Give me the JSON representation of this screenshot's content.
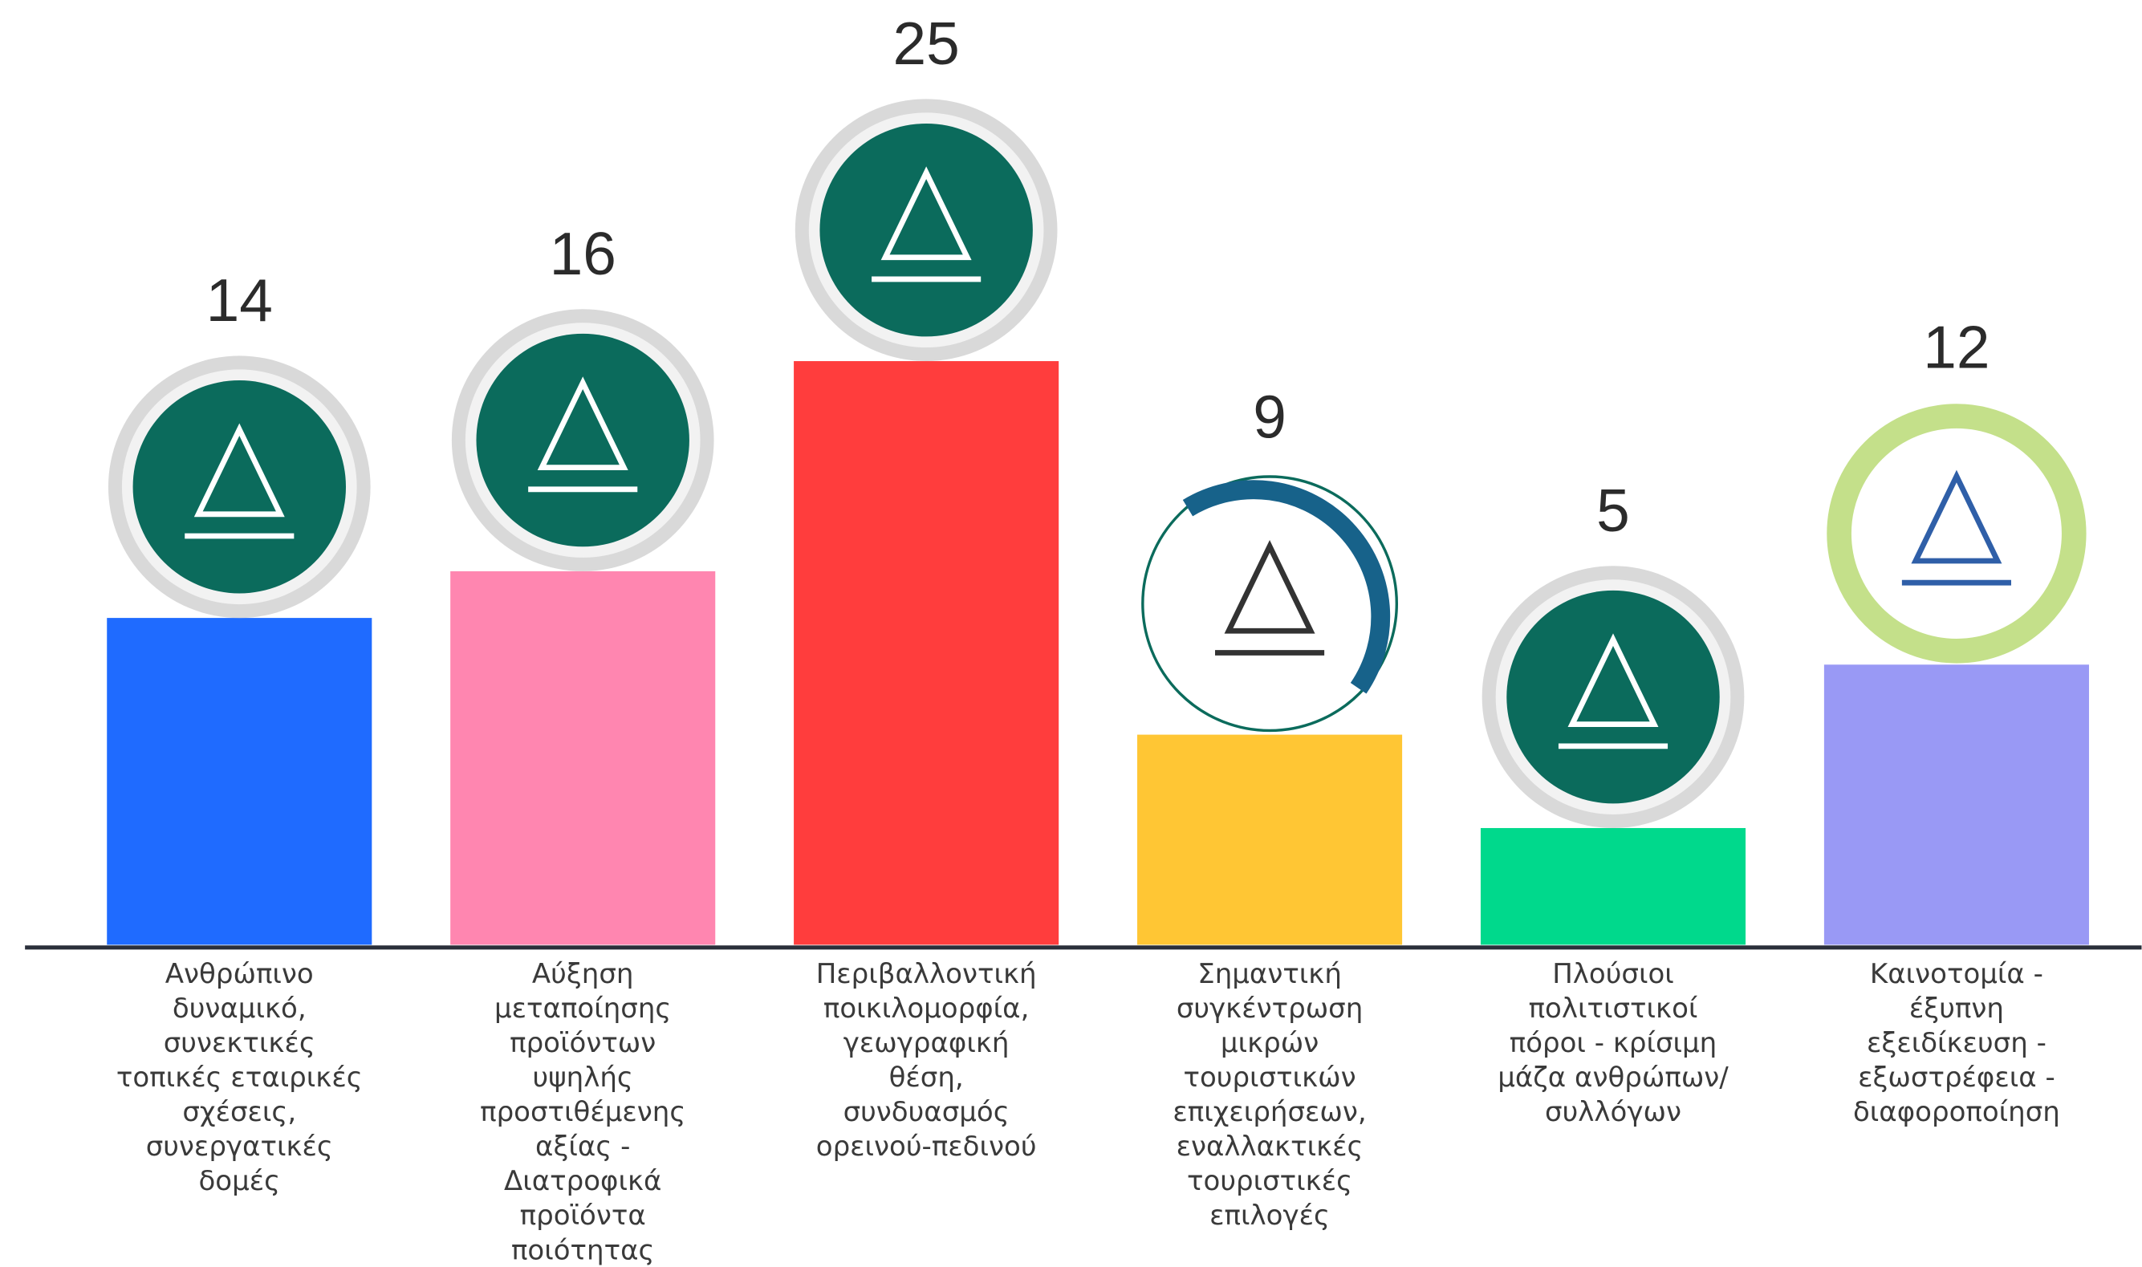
{
  "chart_data": {
    "type": "bar",
    "categories": [
      "Ανθρώπινο\nδυναμικό,\nσυνεκτικές\nτοπικές εταιρικές\nσχέσεις,\nσυνεργατικές\nδομές",
      "Αύξηση\nμεταποίησης\nπροϊόντων\nυψηλής\nπροστιθέμενης\nαξίας -\nΔιατροφικά\nπροϊόντα\nποιότητας",
      "Περιβαλλοντική\nποικιλομορφία,\nγεωγραφική\nθέση,\nσυνδυασμός\nορεινού-πεδινού",
      "Σημαντική\nσυγκέντρωση\nμικρών\nτουριστικών\nεπιχειρήσεων,\nεναλλακτικές\nτουριστικές\nεπιλογές",
      "Πλούσιοι\nπολιτιστικοί\nπόροι - κρίσιμη\nμάζα ανθρώπων/\nσυλλόγων",
      "Καινοτομία -\nέξυπνη\nεξειδίκευση -\nεξωστρέφεια -\nδιαφοροποίηση"
    ],
    "values": [
      14,
      16,
      25,
      9,
      5,
      12
    ],
    "colors": [
      "#1f6bff",
      "#ff86b0",
      "#ff3d3d",
      "#ffc634",
      "#00d98c",
      "#9999f5"
    ]
  }
}
